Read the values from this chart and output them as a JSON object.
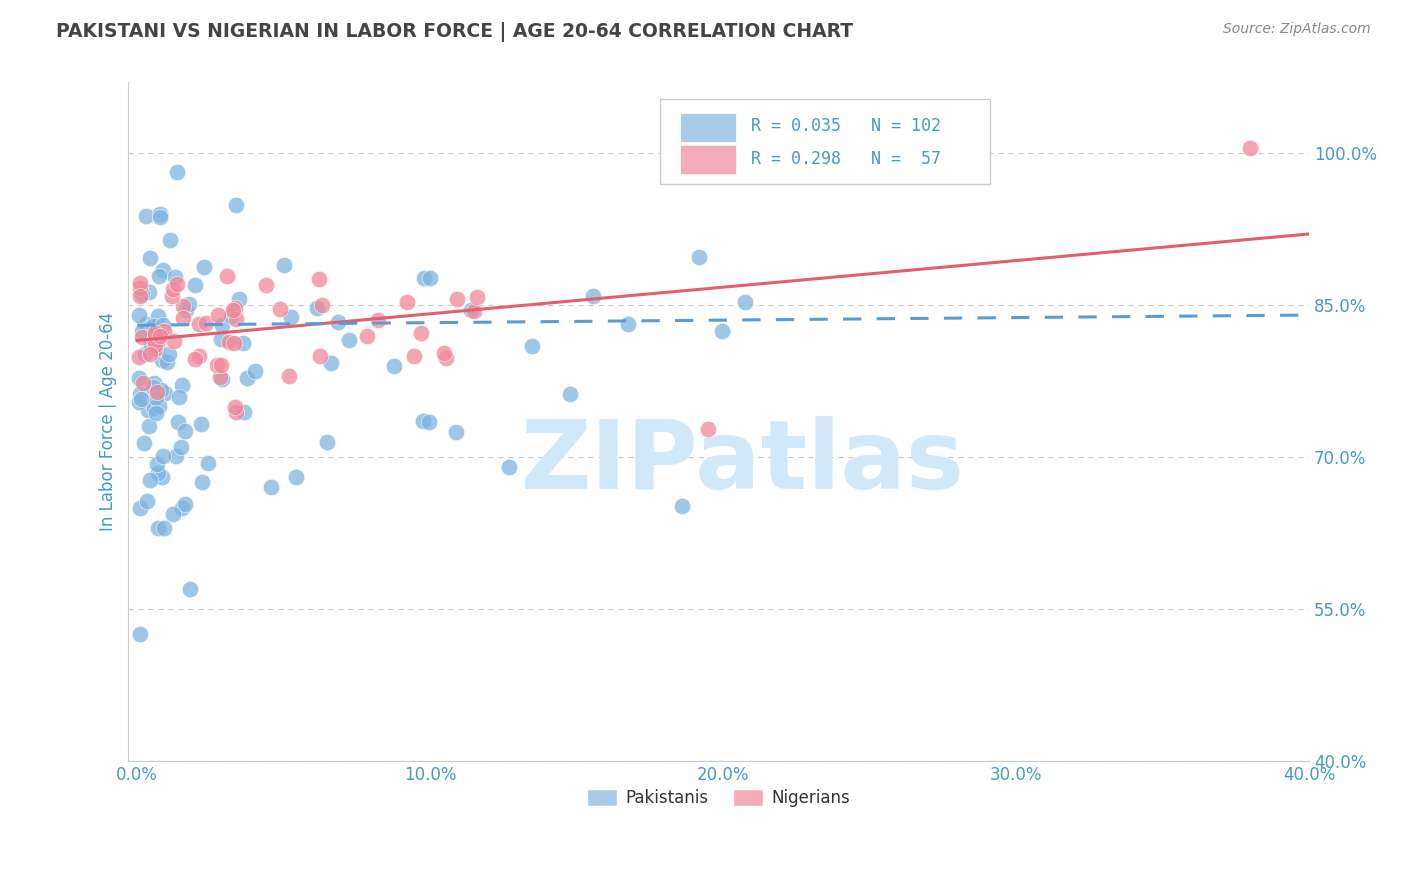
{
  "title": "PAKISTANI VS NIGERIAN IN LABOR FORCE | AGE 20-64 CORRELATION CHART",
  "source": "Source: ZipAtlas.com",
  "ylabel": "In Labor Force | Age 20-64",
  "x_tick_labels": [
    "0.0%",
    "10.0%",
    "20.0%",
    "30.0%",
    "40.0%"
  ],
  "x_tick_vals": [
    0,
    10,
    20,
    30,
    40
  ],
  "y_tick_labels": [
    "40.0%",
    "55.0%",
    "70.0%",
    "85.0%",
    "100.0%"
  ],
  "y_tick_vals": [
    40,
    55,
    70,
    85,
    100
  ],
  "xlim": [
    -0.3,
    40
  ],
  "ylim": [
    40,
    107
  ],
  "R_pakistani": 0.035,
  "N_pakistani": 102,
  "R_nigerian": 0.298,
  "N_nigerian": 57,
  "pakistani_color": "#7cb4e0",
  "nigerian_color": "#f08898",
  "trend_pakistani_color": "#5b9bd5",
  "trend_nigerian_color": "#e06070",
  "background_color": "#ffffff",
  "grid_color": "#c8c8c8",
  "watermark_color": "#d0e8f8",
  "title_color": "#444444",
  "tick_color": "#4499cc",
  "legend_box_color": "#cccccc",
  "legend_pak_box": "#a8cce8",
  "legend_nig_box": "#f4aab8"
}
